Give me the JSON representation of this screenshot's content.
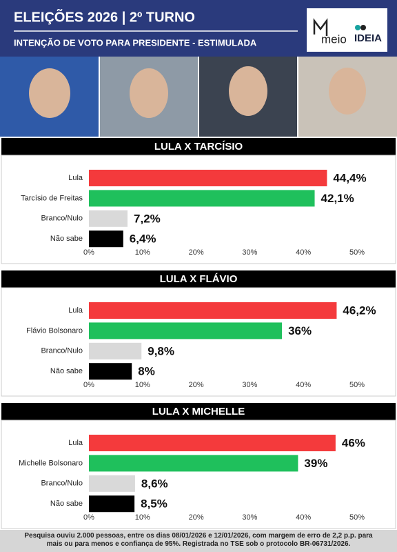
{
  "header": {
    "title": "ELEIÇÕES 2026 | 2º TURNO",
    "subtitle": "INTENÇÃO DE VOTO PARA PRESIDENTE - ESTIMULADA",
    "logo_left": "meio",
    "logo_right": "IDEIA"
  },
  "chart_data": [
    {
      "type": "bar",
      "title": "LULA X TARCÍSIO",
      "orientation": "horizontal",
      "categories": [
        "Lula",
        "Tarcísio de Freitas",
        "Branco/Nulo",
        "Não sabe"
      ],
      "values": [
        44.4,
        42.1,
        7.2,
        6.4
      ],
      "value_labels": [
        "44,4%",
        "42,1%",
        "7,2%",
        "6,4%"
      ],
      "colors": [
        "#f43a3c",
        "#1fc05c",
        "#d9d9d9",
        "#000000"
      ],
      "xlim": [
        0,
        50
      ],
      "xticks": [
        {
          "value": 0,
          "label": "0%"
        },
        {
          "value": 10,
          "label": "10%"
        },
        {
          "value": 20,
          "label": "20%"
        },
        {
          "value": 30,
          "label": "30%"
        },
        {
          "value": 40,
          "label": "40%"
        },
        {
          "value": 50,
          "label": "50%"
        }
      ]
    },
    {
      "type": "bar",
      "title": "LULA X FLÁVIO",
      "orientation": "horizontal",
      "categories": [
        "Lula",
        "Flávio Bolsonaro",
        "Branco/Nulo",
        "Não sabe"
      ],
      "values": [
        46.2,
        36,
        9.8,
        8
      ],
      "value_labels": [
        "46,2%",
        "36%",
        "9,8%",
        "8%"
      ],
      "colors": [
        "#f43a3c",
        "#1fc05c",
        "#d9d9d9",
        "#000000"
      ],
      "xlim": [
        0,
        50
      ],
      "xticks": [
        {
          "value": 0,
          "label": "0%"
        },
        {
          "value": 10,
          "label": "10%"
        },
        {
          "value": 20,
          "label": "20%"
        },
        {
          "value": 30,
          "label": "30%"
        },
        {
          "value": 40,
          "label": "40%"
        },
        {
          "value": 50,
          "label": "50%"
        }
      ]
    },
    {
      "type": "bar",
      "title": "LULA X MICHELLE",
      "orientation": "horizontal",
      "categories": [
        "Lula",
        "Michelle Bolsonaro",
        "Branco/Nulo",
        "Não sabe"
      ],
      "values": [
        46,
        39,
        8.6,
        8.5
      ],
      "value_labels": [
        "46%",
        "39%",
        "8,6%",
        "8,5%"
      ],
      "colors": [
        "#f43a3c",
        "#1fc05c",
        "#d9d9d9",
        "#000000"
      ],
      "xlim": [
        0,
        50
      ],
      "xticks": [
        {
          "value": 0,
          "label": "0%"
        },
        {
          "value": 10,
          "label": "10%"
        },
        {
          "value": 20,
          "label": "20%"
        },
        {
          "value": 30,
          "label": "30%"
        },
        {
          "value": 40,
          "label": "40%"
        },
        {
          "value": 50,
          "label": "50%"
        }
      ]
    }
  ],
  "footer": "Pesquisa ouviu 2.000 pessoas, entre os dias 08/01/2026 e 12/01/2026, com margem de erro de 2,2 p.p. para mais ou para menos e confiança de 95%. Registrada no TSE sob o protocolo BR-06731/2026."
}
